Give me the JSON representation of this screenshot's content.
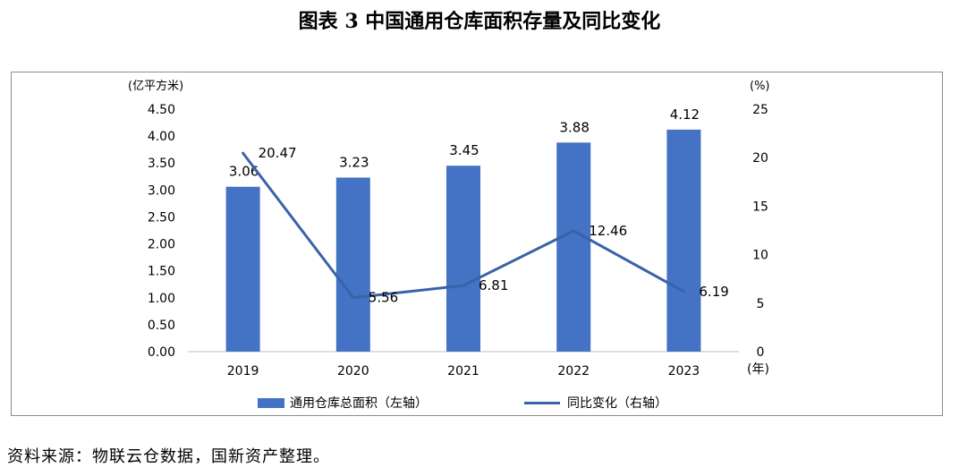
{
  "title": "图表 3  中国通用仓库面积存量及同比变化",
  "source": "资料来源：物联云仓数据，国新资产整理。",
  "colors": {
    "bar": "#4472c4",
    "line": "#3a62a8",
    "text": "#000000",
    "frame": "#8c8c8c"
  },
  "chart_data": {
    "type": "bar",
    "categories": [
      "2019",
      "2020",
      "2021",
      "2022",
      "2023"
    ],
    "left_axis": {
      "unit_label": "(亿平方米)",
      "ylim": [
        0,
        4.5
      ],
      "ticks": [
        "0.00",
        "0.50",
        "1.00",
        "1.50",
        "2.00",
        "2.50",
        "3.00",
        "3.50",
        "4.00",
        "4.50"
      ]
    },
    "right_axis": {
      "unit_label": "(%)",
      "ylim": [
        0,
        25
      ],
      "ticks": [
        "0",
        "5",
        "10",
        "15",
        "20",
        "25"
      ]
    },
    "x_unit_label": "(年)",
    "series": [
      {
        "name": "通用仓库总面积（左轴）",
        "type": "bar",
        "axis": "left",
        "values": [
          3.06,
          3.23,
          3.45,
          3.88,
          4.12
        ],
        "labels": [
          "3.06",
          "3.23",
          "3.45",
          "3.88",
          "4.12"
        ]
      },
      {
        "name": "同比变化（右轴）",
        "type": "line",
        "axis": "right",
        "values": [
          20.47,
          5.56,
          6.81,
          12.46,
          6.19
        ],
        "labels": [
          "20.47",
          "5.56",
          "6.81",
          "12.46",
          "6.19"
        ]
      }
    ],
    "legend_position": "bottom",
    "grid": false
  }
}
